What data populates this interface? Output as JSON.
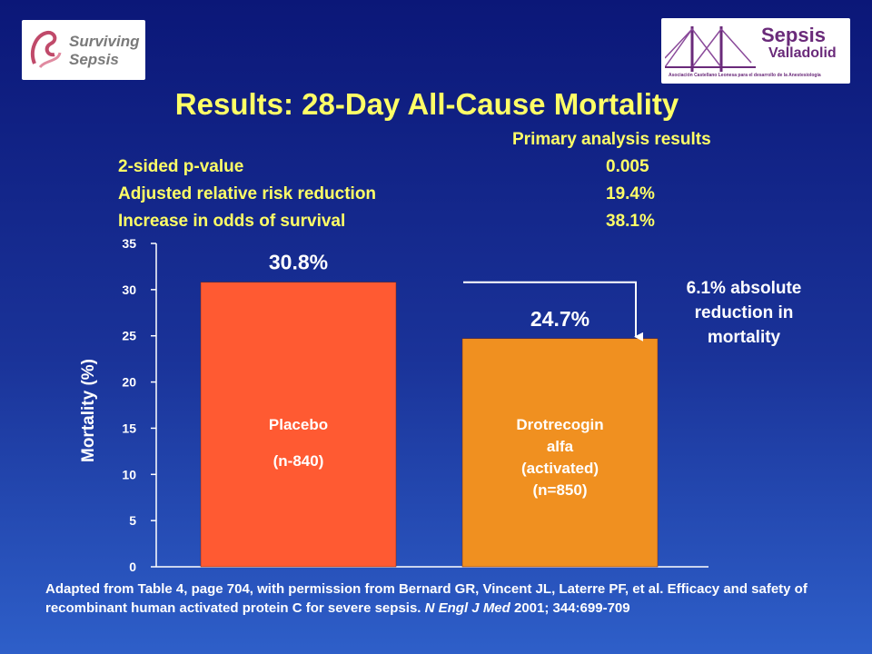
{
  "logos": {
    "left_text_1": "Surviving",
    "left_text_2": "Sepsis",
    "right_text_1": "Sepsis",
    "right_text_2": "Valladolid",
    "right_caption": "Asociación Castellano Leonesa para el desarrollo de la Anestesiología"
  },
  "title": "Results: 28-Day All-Cause Mortality",
  "summary": {
    "header": "Primary analysis results",
    "rows": [
      {
        "label": "2-sided p-value",
        "value": "0.005"
      },
      {
        "label": "Adjusted relative risk reduction",
        "value": "19.4%"
      },
      {
        "label": "Increase in odds of survival",
        "value": "38.1%"
      }
    ]
  },
  "annotation": "6.1% absolute reduction in mortality",
  "chart_data": {
    "type": "bar",
    "categories": [
      "Placebo (n-840)",
      "Drotrecogin alfa (activated) (n=850)"
    ],
    "values": [
      30.8,
      24.7
    ],
    "data_labels": [
      "30.8%",
      "24.7%"
    ],
    "bar_labels": [
      [
        "Placebo",
        "(n-840)"
      ],
      [
        "Drotrecogin",
        "alfa",
        "(activated)",
        "(n=850)"
      ]
    ],
    "ylabel": "Mortality (%)",
    "xlabel": "",
    "ylim": [
      0,
      35
    ],
    "yticks": [
      0,
      5,
      10,
      15,
      20,
      25,
      30,
      35
    ],
    "colors": [
      "#ff5a32",
      "#f09020"
    ],
    "grid": false
  },
  "footnote": {
    "text_1": "Adapted from Table 4, page 704, with permission from Bernard GR, Vincent JL, Laterre PF, et al. Efficacy and safety of recombinant human activated protein C for severe sepsis. ",
    "journal": "N Engl J Med",
    "text_2": " 2001; 344:699-709"
  }
}
